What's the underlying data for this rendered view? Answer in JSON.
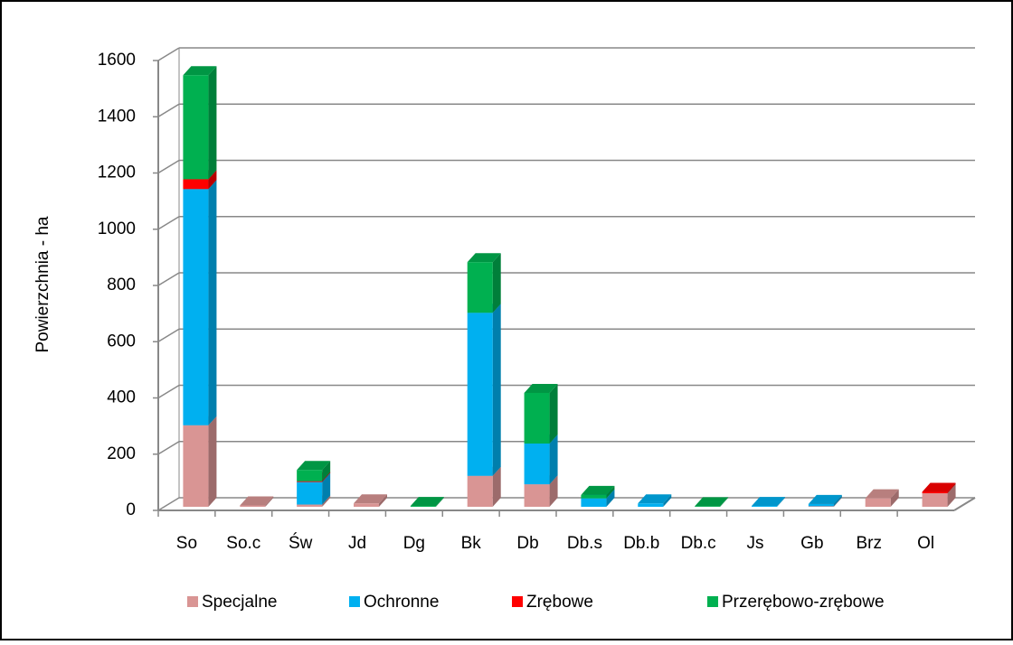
{
  "chart_data": {
    "type": "bar",
    "stacked": true,
    "ylabel": "Powierzchnia - ha",
    "categories": [
      "So",
      "So.c",
      "Św",
      "Jd",
      "Dg",
      "Bk",
      "Db",
      "Db.s",
      "Db.b",
      "Db.c",
      "Js",
      "Gb",
      "Brz",
      "Ol"
    ],
    "series": [
      {
        "name": "Specjalne",
        "color": "#d99594",
        "values": [
          290,
          5,
          8,
          12,
          0,
          110,
          80,
          0,
          0,
          0,
          0,
          2,
          30,
          48
        ]
      },
      {
        "name": "Ochronne",
        "color": "#00b0f0",
        "values": [
          840,
          0,
          80,
          0,
          0,
          580,
          145,
          30,
          12,
          0,
          3,
          8,
          0,
          0
        ]
      },
      {
        "name": "Zrębowe",
        "color": "#ff0000",
        "values": [
          35,
          0,
          3,
          0,
          0,
          0,
          0,
          0,
          0,
          0,
          0,
          0,
          0,
          5
        ]
      },
      {
        "name": "Przerębowo-zrębowe",
        "color": "#00b050",
        "values": [
          370,
          0,
          40,
          0,
          3,
          180,
          180,
          12,
          0,
          2,
          0,
          0,
          0,
          0
        ]
      }
    ],
    "ylim": [
      0,
      1600
    ],
    "yticks": [
      0,
      200,
      400,
      600,
      800,
      1000,
      1200,
      1400,
      1600
    ],
    "grid": true,
    "legend": "bottom"
  }
}
